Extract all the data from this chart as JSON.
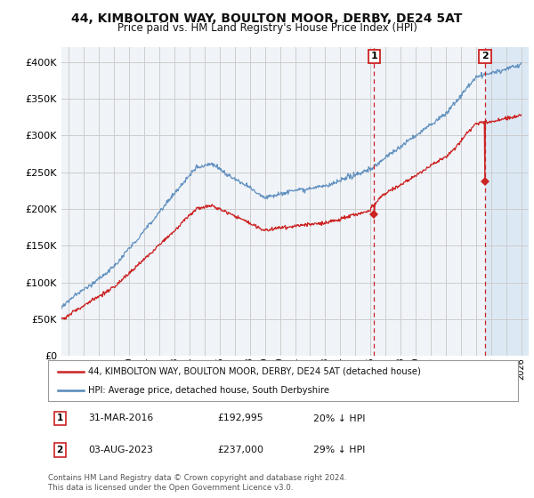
{
  "title": "44, KIMBOLTON WAY, BOULTON MOOR, DERBY, DE24 5AT",
  "subtitle": "Price paid vs. HM Land Registry's House Price Index (HPI)",
  "title_fontsize": 10,
  "subtitle_fontsize": 8.5,
  "ylim": [
    0,
    420000
  ],
  "yticks": [
    0,
    50000,
    100000,
    150000,
    200000,
    250000,
    300000,
    350000,
    400000
  ],
  "ytick_labels": [
    "£0",
    "£50K",
    "£100K",
    "£150K",
    "£200K",
    "£250K",
    "£300K",
    "£350K",
    "£400K"
  ],
  "grid_color": "#cccccc",
  "bg_color": "#f0f4f8",
  "bg_color_shaded": "#dce9f5",
  "hpi_color": "#5588bb",
  "price_color": "#cc2222",
  "marker1_date_x": 2016.25,
  "marker2_date_x": 2023.6,
  "marker1_price": 192995,
  "marker2_price": 237000,
  "legend_line1": "44, KIMBOLTON WAY, BOULTON MOOR, DERBY, DE24 5AT (detached house)",
  "legend_line2": "HPI: Average price, detached house, South Derbyshire",
  "table_row1": [
    "1",
    "31-MAR-2016",
    "£192,995",
    "20% ↓ HPI"
  ],
  "table_row2": [
    "2",
    "03-AUG-2023",
    "£237,000",
    "29% ↓ HPI"
  ],
  "footer": "Contains HM Land Registry data © Crown copyright and database right 2024.\nThis data is licensed under the Open Government Licence v3.0.",
  "xmin": 1995.5,
  "xmax": 2026.5
}
